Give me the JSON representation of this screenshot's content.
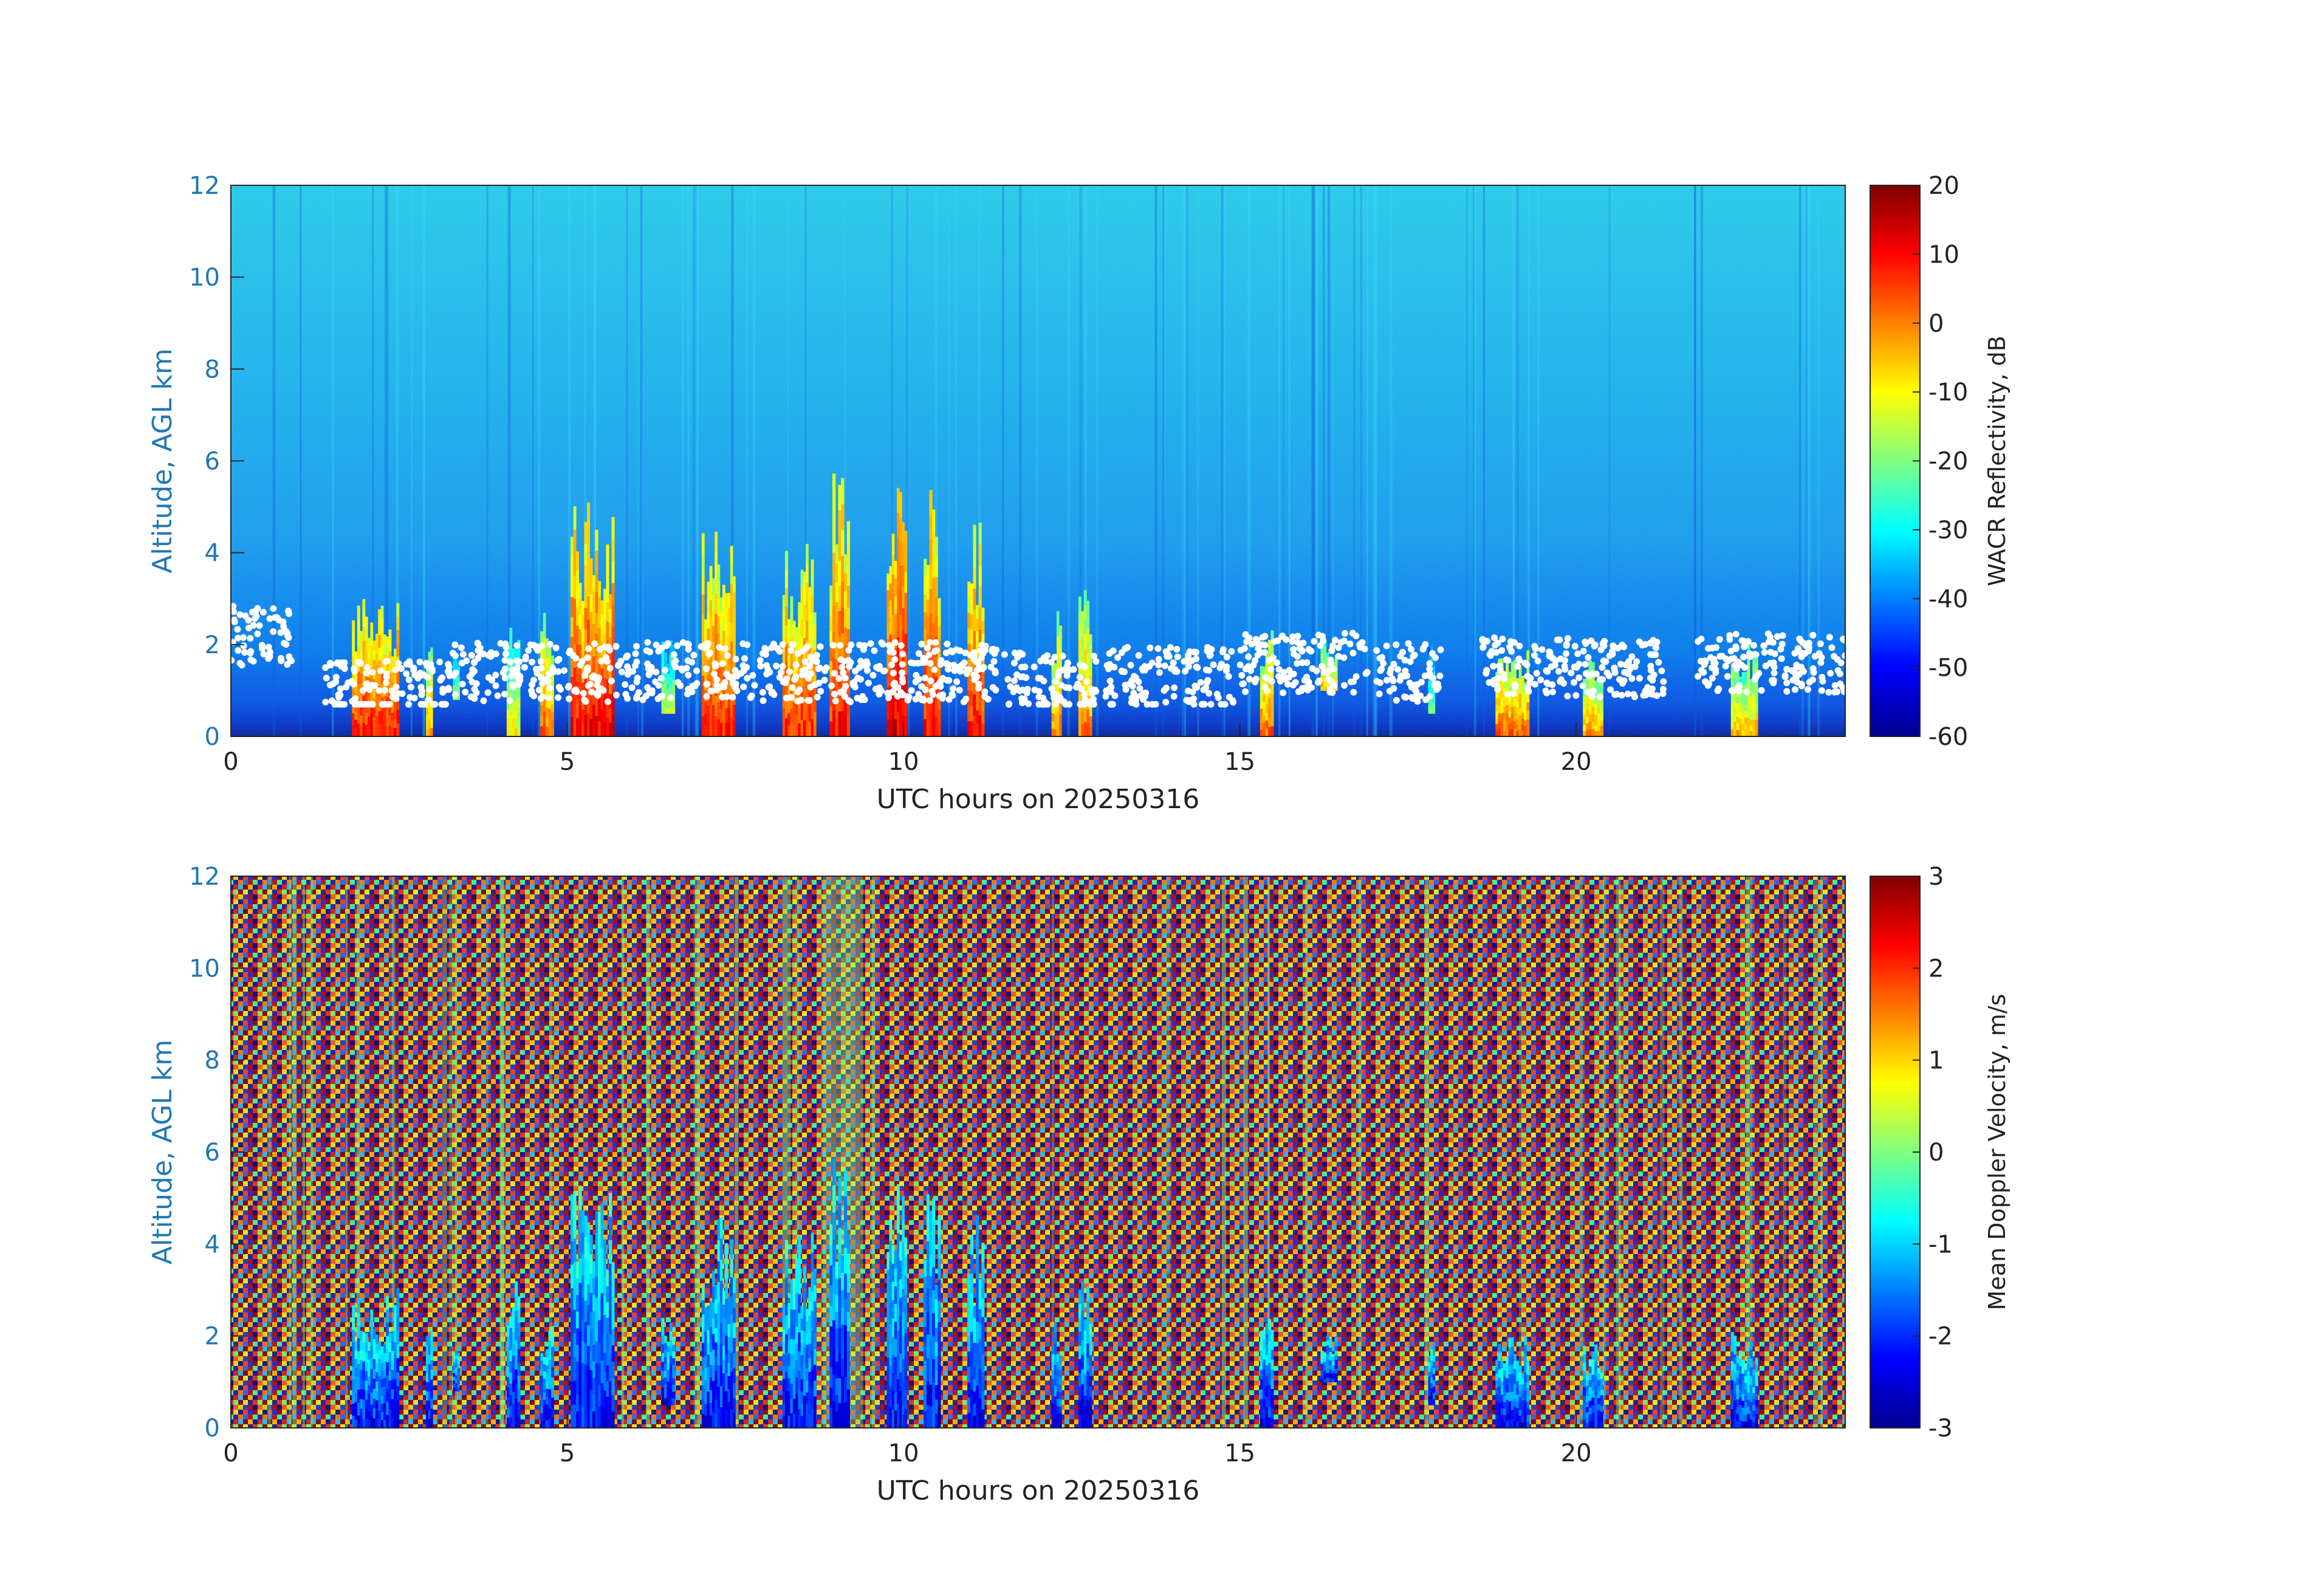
{
  "chart_data": [
    {
      "type": "heatmap",
      "quantity": "radar reflectivity",
      "xlabel": "UTC hours on 20250316",
      "ylabel": "Altitude, AGL km",
      "xlim": [
        0,
        24
      ],
      "ylim": [
        0,
        12
      ],
      "xticks": [
        0,
        5,
        10,
        15,
        20
      ],
      "yticks": [
        0,
        2,
        4,
        6,
        8,
        10,
        12
      ],
      "colorbar": {
        "label": "WACR Reflectivity, dB",
        "colormap": "jet",
        "range": [
          -60,
          20
        ],
        "ticks": [
          20,
          10,
          0,
          -10,
          -20,
          -30,
          -40,
          -50,
          -60
        ]
      },
      "overlay": {
        "description": "cloud base heights (white dots)",
        "color": "#ffffff"
      },
      "cloud_columns": [
        {
          "x0": 1.8,
          "x1": 2.5,
          "top": 3.1,
          "base": 0.0,
          "dbz": 8
        },
        {
          "x0": 2.9,
          "x1": 3.0,
          "top": 2.5,
          "base": 0.0,
          "dbz": -2
        },
        {
          "x0": 3.3,
          "x1": 3.4,
          "top": 2.2,
          "base": 0.8,
          "dbz": -20
        },
        {
          "x0": 4.1,
          "x1": 4.3,
          "top": 3.2,
          "base": 0.0,
          "dbz": -10
        },
        {
          "x0": 4.6,
          "x1": 4.8,
          "top": 2.8,
          "base": 0.0,
          "dbz": 2
        },
        {
          "x0": 5.05,
          "x1": 5.7,
          "top": 5.3,
          "base": 0.0,
          "dbz": 10
        },
        {
          "x0": 6.4,
          "x1": 6.6,
          "top": 2.4,
          "base": 0.5,
          "dbz": -15
        },
        {
          "x0": 7.0,
          "x1": 7.5,
          "top": 4.6,
          "base": 0.0,
          "dbz": 7
        },
        {
          "x0": 8.2,
          "x1": 8.7,
          "top": 4.3,
          "base": 0.0,
          "dbz": 6
        },
        {
          "x0": 8.9,
          "x1": 9.2,
          "top": 5.9,
          "base": 0.0,
          "dbz": 8
        },
        {
          "x0": 9.75,
          "x1": 10.05,
          "top": 6.0,
          "base": 0.0,
          "dbz": 12
        },
        {
          "x0": 10.3,
          "x1": 10.55,
          "top": 5.4,
          "base": 0.0,
          "dbz": 9
        },
        {
          "x0": 10.95,
          "x1": 11.2,
          "top": 4.7,
          "base": 0.0,
          "dbz": 8
        },
        {
          "x0": 12.2,
          "x1": 12.35,
          "top": 2.8,
          "base": 0.0,
          "dbz": 0
        },
        {
          "x0": 12.6,
          "x1": 12.8,
          "top": 3.6,
          "base": 0.0,
          "dbz": 0
        },
        {
          "x0": 15.3,
          "x1": 15.5,
          "top": 2.5,
          "base": 0.0,
          "dbz": 2
        },
        {
          "x0": 16.2,
          "x1": 16.45,
          "top": 2.1,
          "base": 1.0,
          "dbz": -5
        },
        {
          "x0": 17.8,
          "x1": 17.9,
          "top": 2.3,
          "base": 0.5,
          "dbz": -20
        },
        {
          "x0": 18.8,
          "x1": 19.3,
          "top": 2.1,
          "base": 0.0,
          "dbz": 2
        },
        {
          "x0": 20.1,
          "x1": 20.4,
          "top": 2.0,
          "base": 0.0,
          "dbz": -2
        },
        {
          "x0": 22.3,
          "x1": 22.7,
          "top": 2.1,
          "base": 0.0,
          "dbz": -5
        }
      ]
    },
    {
      "type": "heatmap",
      "quantity": "mean Doppler velocity",
      "xlabel": "UTC hours on 20250316",
      "ylabel": "Altitude, AGL km",
      "xlim": [
        0,
        24
      ],
      "ylim": [
        0,
        12
      ],
      "xticks": [
        0,
        5,
        10,
        15,
        20
      ],
      "yticks": [
        0,
        2,
        4,
        6,
        8,
        10,
        12
      ],
      "colorbar": {
        "label": "Mean Doppler Velocity, m/s",
        "colormap": "jet",
        "range": [
          -3,
          3
        ],
        "ticks": [
          3,
          2,
          1,
          0,
          -1,
          -2,
          -3
        ]
      },
      "background": "random noise"
    }
  ]
}
